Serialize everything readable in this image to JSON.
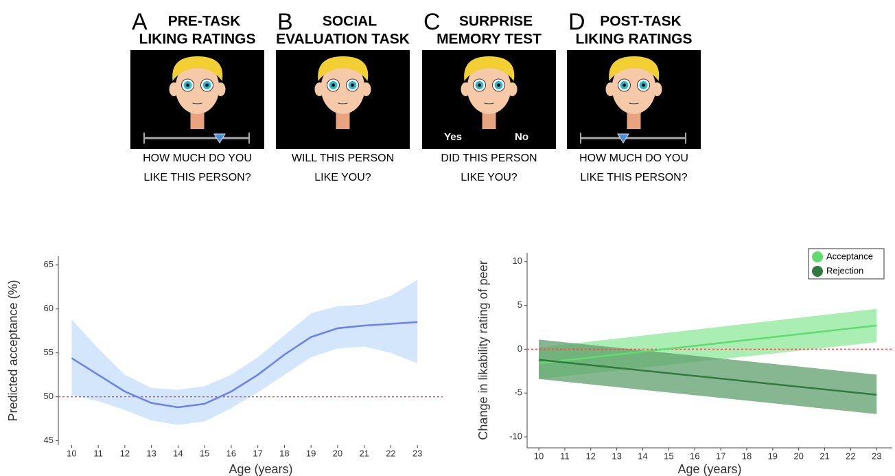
{
  "panels": [
    {
      "letter": "A",
      "title": [
        "PRE-TASK",
        "LIKING RATINGS"
      ],
      "question": [
        "HOW MUCH DO YOU",
        "LIKE THIS PERSON?"
      ]
    },
    {
      "letter": "B",
      "title": [
        "SOCIAL",
        "EVALUATION TASK"
      ],
      "question": [
        "WILL THIS PERSON",
        "LIKE YOU?"
      ]
    },
    {
      "letter": "C",
      "title": [
        "SURPRISE",
        "MEMORY TEST"
      ],
      "question": [
        "DID THIS PERSON",
        "LIKE YOU?"
      ],
      "options": [
        "Yes",
        "No"
      ]
    },
    {
      "letter": "D",
      "title": [
        "POST-TASK",
        "LIKING RATINGS"
      ],
      "question": [
        "HOW MUCH DO YOU",
        "LIKE THIS PERSON?"
      ]
    }
  ],
  "chart_data": [
    {
      "type": "line",
      "x_label": "Age (years)",
      "y_label": "Predicted acceptance (%)",
      "x": [
        10,
        11,
        12,
        13,
        14,
        15,
        16,
        17,
        18,
        19,
        20,
        21,
        22,
        23
      ],
      "series": [
        {
          "color": "#6b7ff0",
          "band_color": "#cfe3fb",
          "values": [
            54.4,
            52.5,
            50.6,
            49.3,
            48.8,
            49.2,
            50.6,
            52.5,
            54.8,
            56.8,
            57.8,
            58.1,
            58.3,
            58.5
          ],
          "lower": [
            50.2,
            49.5,
            48.5,
            47.3,
            46.8,
            47.2,
            48.7,
            50.5,
            52.5,
            54.5,
            55.5,
            55.7,
            55.0,
            53.8
          ],
          "upper": [
            58.8,
            55.5,
            52.5,
            51.0,
            50.8,
            51.2,
            52.5,
            54.5,
            57.0,
            59.5,
            60.3,
            60.5,
            61.5,
            63.3
          ]
        }
      ],
      "reference_line": 50,
      "xlim": [
        9.5,
        23.95
      ],
      "ylim": [
        44.5,
        66
      ],
      "xticks": [
        10,
        11,
        12,
        13,
        14,
        15,
        16,
        17,
        18,
        19,
        20,
        21,
        22,
        23
      ],
      "yticks": [
        45,
        50,
        55,
        60,
        65
      ]
    },
    {
      "type": "line",
      "x_label": "Age (years)",
      "y_label": "Change in likability rating of peer",
      "x": [
        10,
        23
      ],
      "series": [
        {
          "name": "Acceptance",
          "color": "#5fdc6e",
          "band_color": "#8fe89a",
          "values": [
            -1.6,
            2.7
          ],
          "lower": [
            -3.4,
            0.8
          ],
          "upper": [
            0.2,
            4.6
          ]
        },
        {
          "name": "Rejection",
          "color": "#2f7a3c",
          "band_color": "#5f9f6b",
          "values": [
            -1.2,
            -5.2
          ],
          "lower": [
            -3.4,
            -7.4
          ],
          "upper": [
            1.1,
            -2.9
          ]
        }
      ],
      "reference_line": 0,
      "legend": "top-right",
      "xlim": [
        9.55,
        23.6
      ],
      "ylim": [
        -11.25,
        11
      ],
      "xticks": [
        10,
        11,
        12,
        13,
        14,
        15,
        16,
        17,
        18,
        19,
        20,
        21,
        22,
        23
      ],
      "yticks": [
        -10,
        -5,
        0,
        5,
        10
      ]
    }
  ]
}
